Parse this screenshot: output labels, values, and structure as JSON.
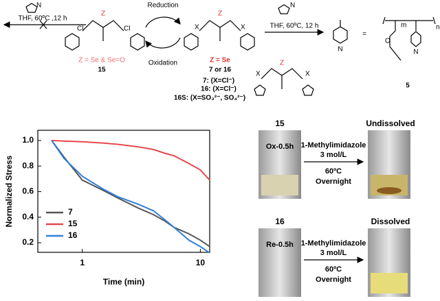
{
  "chart_data": {
    "type": "line",
    "xlabel": "Time (min)",
    "ylabel": "Normalized Stress",
    "x": [
      0.55,
      0.7,
      1,
      1.5,
      2,
      3,
      4,
      5,
      6,
      8,
      10,
      12
    ],
    "series": [
      {
        "name": "7",
        "color": "#555555",
        "values": [
          1.0,
          0.87,
          0.69,
          0.61,
          0.55,
          0.47,
          0.42,
          0.37,
          0.32,
          0.27,
          0.22,
          0.17
        ]
      },
      {
        "name": "15",
        "color": "#e8474a",
        "values": [
          1.0,
          0.995,
          0.99,
          0.98,
          0.97,
          0.95,
          0.93,
          0.9,
          0.88,
          0.82,
          0.77,
          0.69
        ]
      },
      {
        "name": "16",
        "color": "#2f7fd8",
        "values": [
          1.0,
          0.86,
          0.72,
          0.62,
          0.56,
          0.5,
          0.45,
          0.38,
          0.32,
          0.22,
          0.17,
          0.12
        ]
      }
    ],
    "xlim": [
      0.42,
      12
    ],
    "xticks": [
      1,
      10
    ],
    "xscale": "log",
    "ylim": [
      0.125,
      1.08
    ],
    "yticks": [
      0.2,
      0.4,
      0.6,
      0.8,
      {
        "value": 1,
        "label": "1.0"
      }
    ],
    "legend": "lower-left"
  },
  "scheme": {
    "reagents_left": "THF, 60ºC ,12 h",
    "z_left": "Z = Se & Se=O",
    "compound_left": "15",
    "reduction": "Reduction",
    "oxidation": "Oxidation",
    "z_mid": "Z = Se",
    "compound_mid": "7 or 16",
    "notes": [
      "7: (X=Cl⁻)",
      "16: (X=Cl⁻)",
      "16S: (X=SO₃²⁻, SO₄²⁻)"
    ],
    "reagents_right": "THF, 60ºC, 12 h",
    "equals": "=",
    "compound_right": "5",
    "atoms": {
      "z": "Z",
      "n": "N",
      "cl": "Cl",
      "x": "X",
      "o": "O",
      "m": "m",
      "n_sub": "n"
    }
  },
  "photos": [
    {
      "sample": "15",
      "vial_label": "Ox-0.5h",
      "reagent": "1-Methylimidazole",
      "conc": "3 mol/L",
      "temp": "60ºC",
      "time": "Overnight",
      "result": "Undissolved"
    },
    {
      "sample": "16",
      "vial_label": "Re-0.5h",
      "reagent": "1-Methylimidazole",
      "conc": "3 mol/L",
      "temp": "60ºC",
      "time": "Overnight",
      "result": "Dissolved"
    }
  ]
}
